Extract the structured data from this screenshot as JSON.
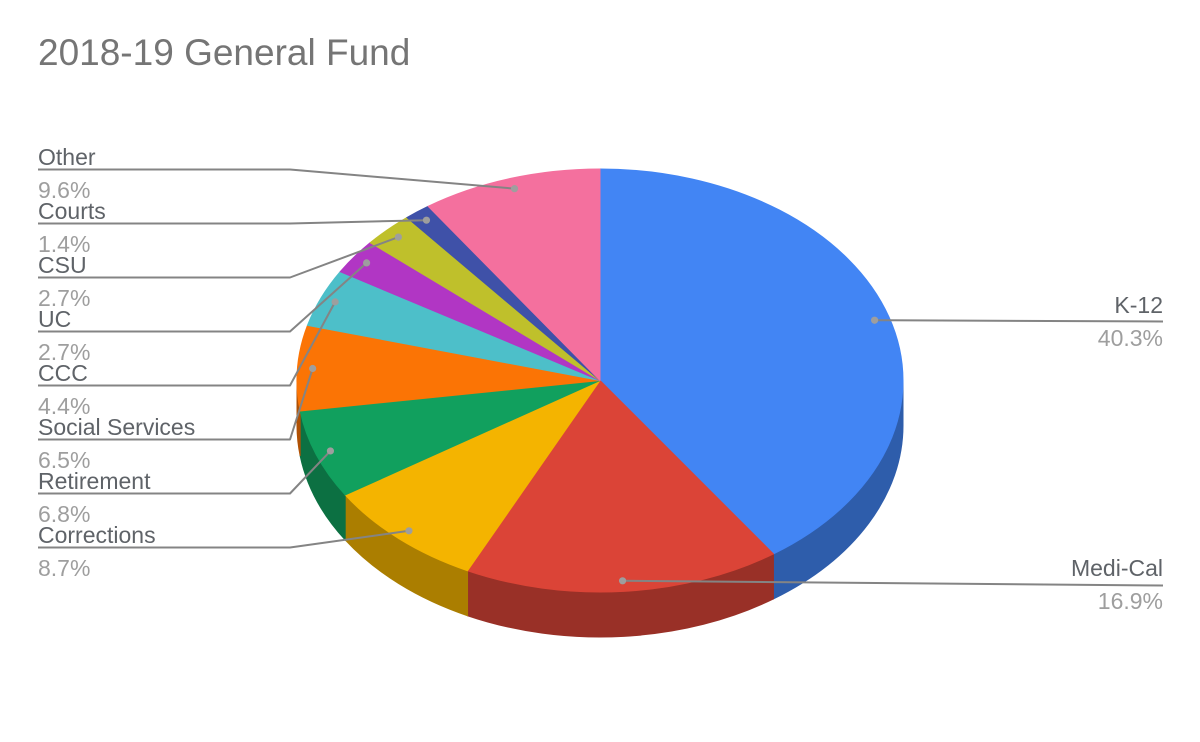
{
  "chart_data": {
    "type": "pie",
    "style": "3d",
    "title": "2018-19 General Fund",
    "unit": "%",
    "start_angle_deg": 0,
    "direction": "clockwise",
    "legend_position": "labeled-callouts",
    "slices": [
      {
        "label": "K-12",
        "value": 40.3,
        "display": "40.3%",
        "color": "#4285F4"
      },
      {
        "label": "Medi-Cal",
        "value": 16.9,
        "display": "16.9%",
        "color": "#DB4437"
      },
      {
        "label": "Corrections",
        "value": 8.7,
        "display": "8.7%",
        "color": "#F4B400"
      },
      {
        "label": "Retirement",
        "value": 6.8,
        "display": "6.8%",
        "color": "#11A05E"
      },
      {
        "label": "Social Services",
        "value": 6.5,
        "display": "6.5%",
        "color": "#FB7405"
      },
      {
        "label": "CCC",
        "value": 4.4,
        "display": "4.4%",
        "color": "#4DBFC9"
      },
      {
        "label": "UC",
        "value": 2.7,
        "display": "2.7%",
        "color": "#B136C4"
      },
      {
        "label": "CSU",
        "value": 2.7,
        "display": "2.7%",
        "color": "#BFC02B"
      },
      {
        "label": "Courts",
        "value": 1.4,
        "display": "1.4%",
        "color": "#3F51A8"
      },
      {
        "label": "Other",
        "value": 9.6,
        "display": "9.6%",
        "color": "#F4709E"
      }
    ]
  },
  "styles": {
    "title_color": "#757575",
    "label_color": "#5F6368",
    "percent_color": "#9E9E9E",
    "leader_line_color": "#848484",
    "dot_color": "#9E9E9E",
    "background": "#FFFFFF"
  }
}
